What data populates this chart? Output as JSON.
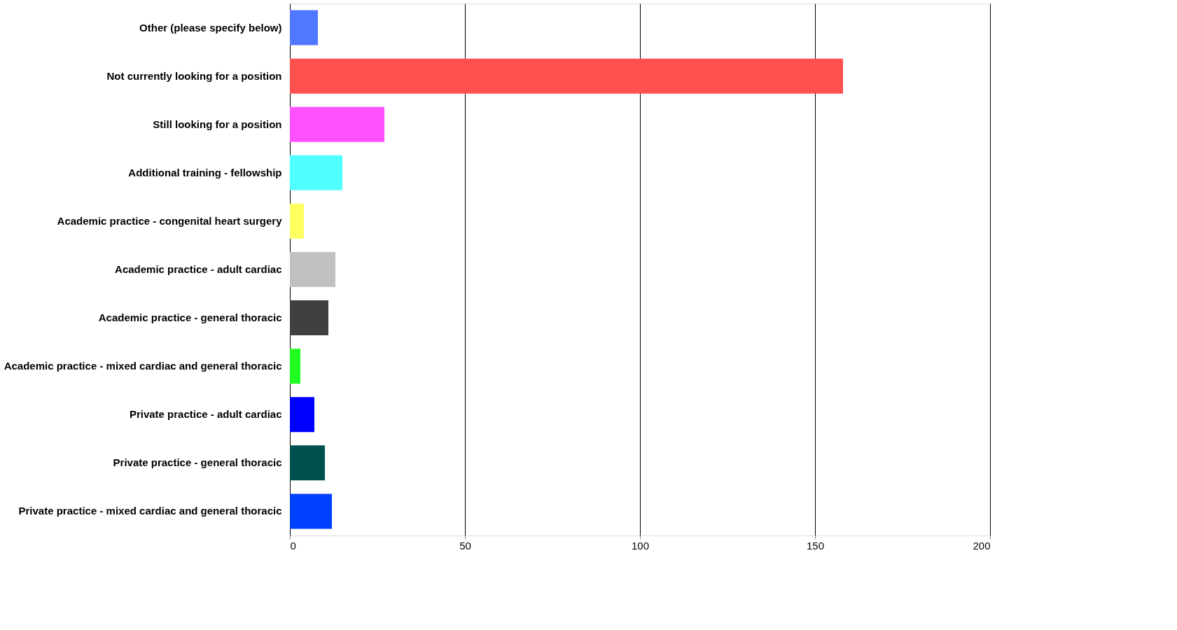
{
  "chart_data": {
    "type": "bar",
    "orientation": "horizontal",
    "categories": [
      "Other (please specify below)",
      "Not currently looking for a position",
      "Still looking for a position",
      "Additional training - fellowship",
      "Academic practice - congenital heart surgery",
      "Academic practice - adult cardiac",
      "Academic practice - general thoracic",
      "Academic practice - mixed cardiac and general thoracic",
      "Private practice - adult cardiac",
      "Private practice - general thoracic",
      "Private practice - mixed cardiac and general thoracic"
    ],
    "values": [
      8,
      158,
      27,
      15,
      4,
      13,
      11,
      3,
      7,
      10,
      12
    ],
    "colors": [
      "#5078ff",
      "#ff5050",
      "#ff50ff",
      "#50ffff",
      "#ffff60",
      "#c0c0c0",
      "#404040",
      "#20ff20",
      "#0000ff",
      "#005050",
      "#0040ff"
    ],
    "xlim": [
      0,
      200
    ],
    "xticks": [
      0,
      50,
      100,
      150,
      200
    ],
    "grid": "x"
  }
}
